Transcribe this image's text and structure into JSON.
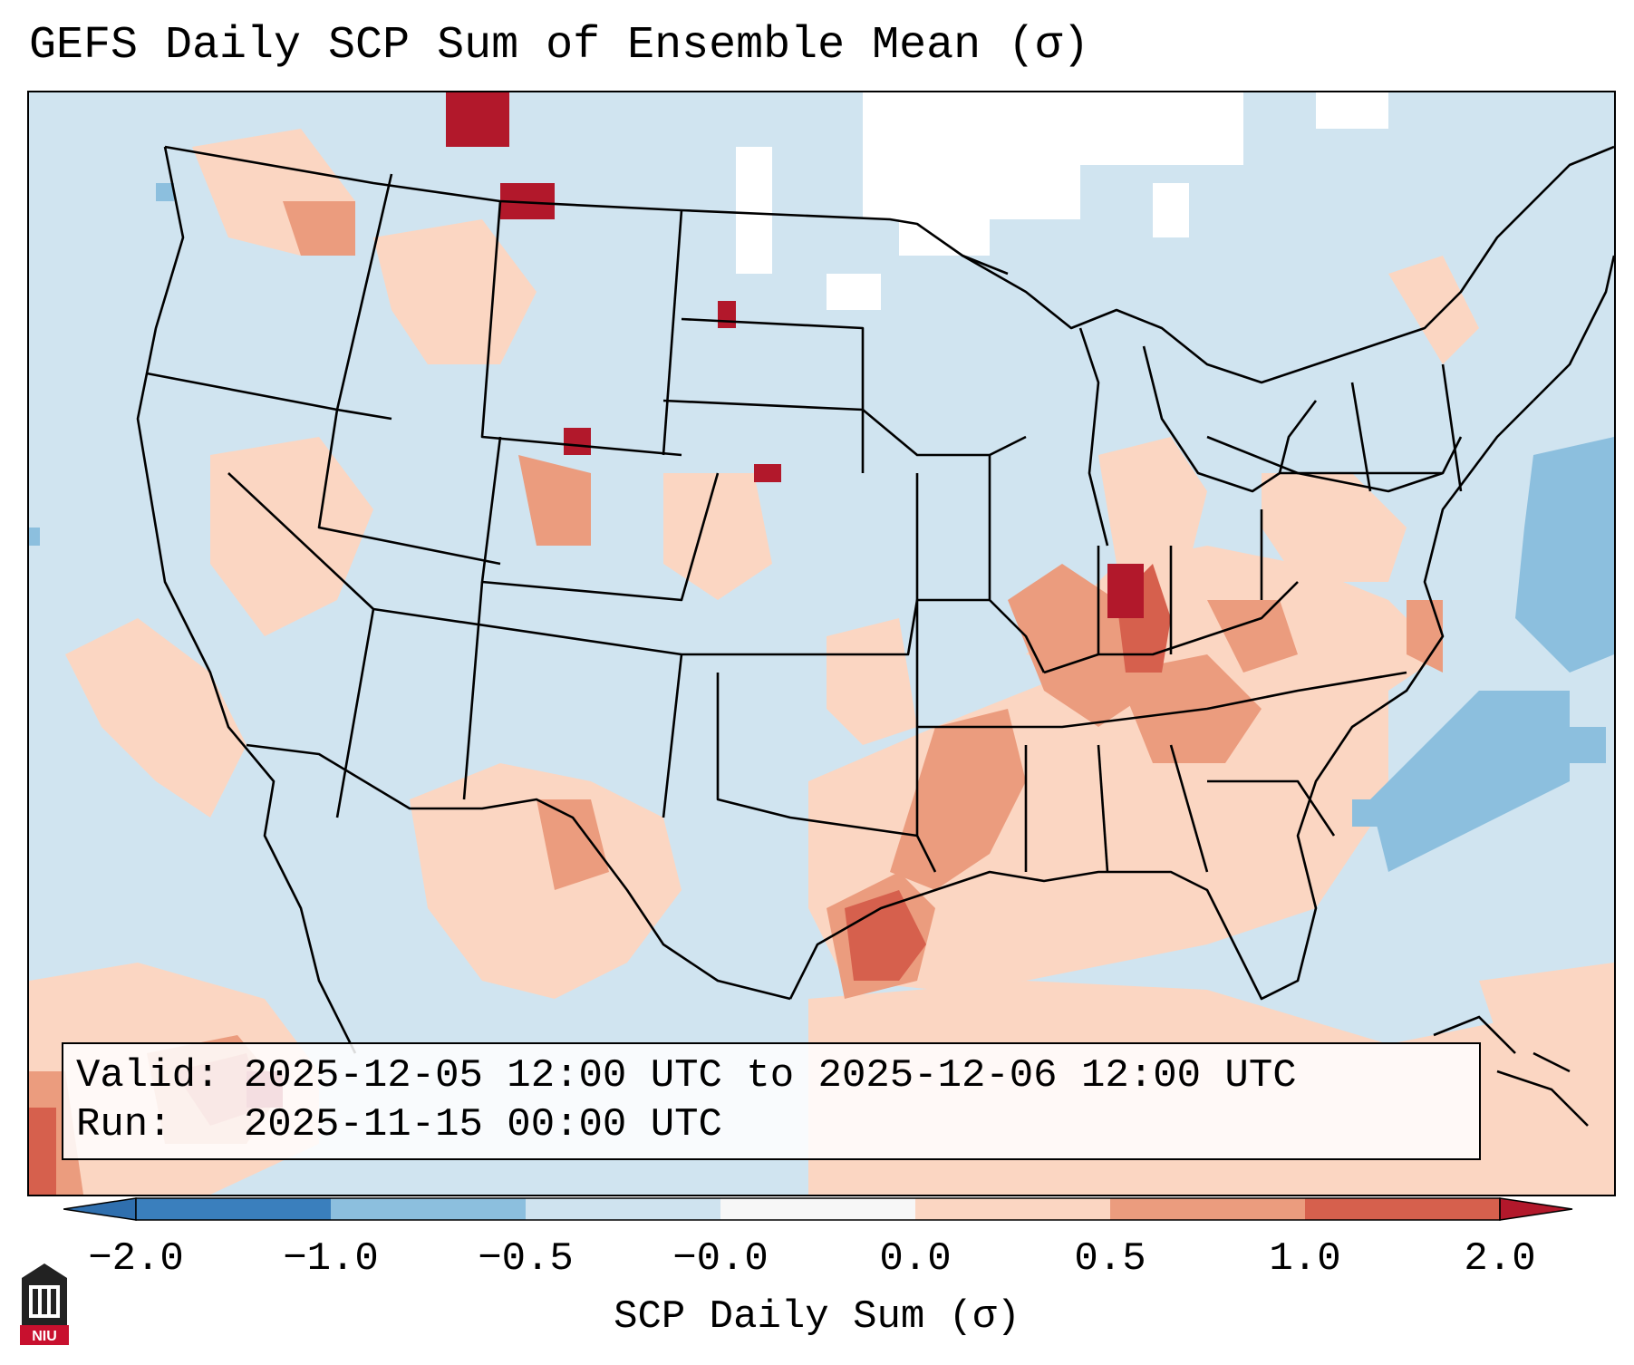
{
  "title": "GEFS Daily SCP Sum of Ensemble Mean (σ)",
  "info": {
    "valid_label": "Valid:",
    "valid_value": "2025-12-05 12:00 UTC to 2025-12-06 12:00 UTC",
    "run_label": "Run:",
    "run_value": "2025-11-15 00:00 UTC"
  },
  "colorbar": {
    "label": "SCP Daily Sum (σ)",
    "ticks": [
      "−2.0",
      "−1.0",
      "−0.5",
      "−0.0",
      "0.0",
      "0.5",
      "1.0",
      "2.0"
    ],
    "colors": [
      "#3a7fbd",
      "#8cbfde",
      "#cfe3ef",
      "#f7f7f7",
      "#fbd6c2",
      "#eb9c7e",
      "#d6604d",
      "#b2182b"
    ]
  },
  "map_colors": {
    "background": "#d0e4f0",
    "light_red": "#fbd6c2",
    "medium_red": "#eb9c7e",
    "dark_red": "#d6604d",
    "darkest_red": "#b2182b",
    "blue": "#8cbfde",
    "white": "#ffffff"
  },
  "logo": {
    "text": "NIU",
    "icon": "university-building-icon"
  }
}
